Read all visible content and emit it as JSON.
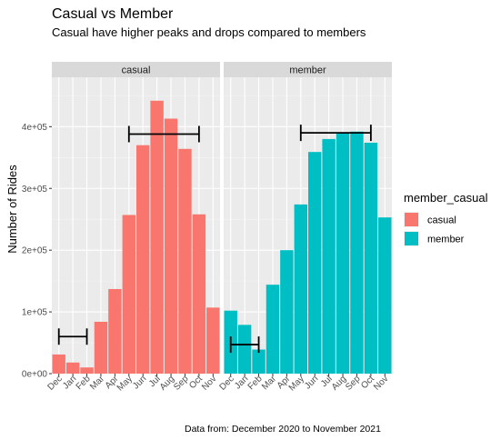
{
  "chart_data": {
    "type": "bar",
    "title": "Casual vs Member",
    "subtitle": "Casual have higher peaks and drops compared to members",
    "ylabel": "Number of Rides",
    "xlabel": "",
    "caption": "Data from: December 2020 to November 2021",
    "categories": [
      "Dec",
      "Jan",
      "Feb",
      "Mar",
      "Apr",
      "May",
      "Jun",
      "Jul",
      "Aug",
      "Sep",
      "Oct",
      "Nov"
    ],
    "ylim": [
      0,
      480000
    ],
    "yticks": [
      0,
      100000,
      200000,
      300000,
      400000
    ],
    "ytick_labels": [
      "0e+00",
      "1e+05",
      "2e+05",
      "3e+05",
      "4e+05"
    ],
    "legend": {
      "title": "member_casual",
      "position": "right"
    },
    "grid": true,
    "series": [
      {
        "name": "casual",
        "facet": "casual",
        "color": "#F8766D",
        "values": [
          31000,
          18000,
          10000,
          84000,
          137000,
          257000,
          370000,
          442000,
          413000,
          364000,
          258000,
          107000
        ]
      },
      {
        "name": "member",
        "facet": "member",
        "color": "#00BFC4",
        "values": [
          102000,
          79000,
          39000,
          144000,
          200000,
          274000,
          359000,
          380000,
          391000,
          392000,
          374000,
          253000
        ]
      }
    ],
    "annotations": [
      {
        "facet": "casual",
        "type": "range-bracket",
        "x_from": "Dec",
        "x_to": "Feb",
        "y": 60000
      },
      {
        "facet": "casual",
        "type": "range-bracket",
        "x_from": "May",
        "x_to": "Oct",
        "y": 388000
      },
      {
        "facet": "member",
        "type": "range-bracket",
        "x_from": "Dec",
        "x_to": "Feb",
        "y": 47000
      },
      {
        "facet": "member",
        "type": "range-bracket",
        "x_from": "May",
        "x_to": "Oct",
        "y": 390000
      }
    ]
  }
}
